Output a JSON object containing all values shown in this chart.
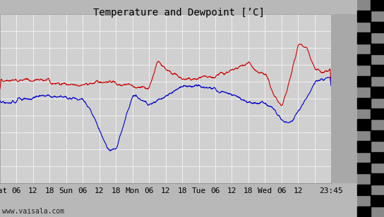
{
  "title": "Temperature and Dewpoint [’C]",
  "ylim": [
    -10,
    10
  ],
  "yticks": [
    -10,
    -8,
    -6,
    -4,
    -2,
    0,
    2,
    4,
    6,
    8,
    10
  ],
  "x_labels": [
    "Sat",
    "06",
    "12",
    "18",
    "Sun",
    "06",
    "12",
    "18",
    "Mon",
    "06",
    "12",
    "18",
    "Tue",
    "06",
    "12",
    "18",
    "Wed",
    "06",
    "12",
    "23:45"
  ],
  "bg_color": "#b8b8b8",
  "plot_bg_color": "#d0d0d0",
  "right_panel_color": "#a8a8a8",
  "grid_color": "#f0f0f0",
  "temp_color": "#cc0000",
  "dewp_color": "#0000cc",
  "watermark": "www.vaisala.com",
  "title_fontsize": 10,
  "axis_fontsize": 8,
  "line_width": 0.8,
  "n_days": 5,
  "n_points": 1440
}
